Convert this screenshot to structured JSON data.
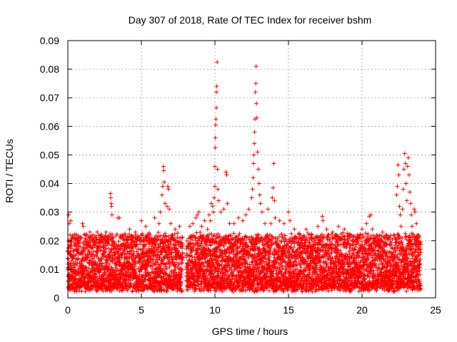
{
  "chart_data": {
    "type": "scatter",
    "title": "Day 307 of 2018, Rate Of TEC Index for receiver bshm",
    "xlabel": "GPS time / hours",
    "ylabel": "ROTI / TECUs",
    "xlim": [
      0,
      25
    ],
    "ylim": [
      0,
      0.09
    ],
    "xticks": [
      "0",
      "5",
      "10",
      "15",
      "20",
      "25"
    ],
    "yticks": [
      "0",
      "0.01",
      "0.02",
      "0.03",
      "0.04",
      "0.05",
      "0.06",
      "0.07",
      "0.08",
      "0.09"
    ],
    "xtick_values": [
      0,
      5,
      10,
      15,
      20,
      25
    ],
    "ytick_values": [
      0,
      0.01,
      0.02,
      0.03,
      0.04,
      0.05,
      0.06,
      0.07,
      0.08,
      0.09
    ],
    "grid": true,
    "marker": "plus",
    "color": "#ff0000",
    "data_gaps_hours": [
      [
        7.8,
        8.05
      ]
    ],
    "background_band": {
      "start": 0,
      "end": 24,
      "typical_min": 0.003,
      "typical_max": 0.022
    },
    "points": [
      [
        0.05,
        0.029
      ],
      [
        0.1,
        0.026
      ],
      [
        0.15,
        0.022
      ],
      [
        0.2,
        0.027
      ],
      [
        0.25,
        0.018
      ],
      [
        0.6,
        0.022
      ],
      [
        0.9,
        0.021
      ],
      [
        1.0,
        0.026
      ],
      [
        1.05,
        0.025
      ],
      [
        1.2,
        0.022
      ],
      [
        1.5,
        0.023
      ],
      [
        1.7,
        0.022
      ],
      [
        2.0,
        0.023
      ],
      [
        2.3,
        0.02
      ],
      [
        2.6,
        0.023
      ],
      [
        2.9,
        0.0365
      ],
      [
        2.92,
        0.035
      ],
      [
        2.95,
        0.033
      ],
      [
        2.98,
        0.032
      ],
      [
        3.0,
        0.029
      ],
      [
        3.4,
        0.028
      ],
      [
        3.5,
        0.028
      ],
      [
        3.8,
        0.022
      ],
      [
        4.2,
        0.024
      ],
      [
        4.6,
        0.023
      ],
      [
        5.0,
        0.027
      ],
      [
        5.3,
        0.025
      ],
      [
        5.6,
        0.022
      ],
      [
        5.9,
        0.028
      ],
      [
        6.2,
        0.026
      ],
      [
        6.3,
        0.03
      ],
      [
        6.4,
        0.036
      ],
      [
        6.45,
        0.039
      ],
      [
        6.5,
        0.046
      ],
      [
        6.52,
        0.0445
      ],
      [
        6.55,
        0.0405
      ],
      [
        6.6,
        0.033
      ],
      [
        6.75,
        0.032
      ],
      [
        6.8,
        0.039
      ],
      [
        6.85,
        0.038
      ],
      [
        6.9,
        0.031
      ],
      [
        7.0,
        0.026
      ],
      [
        7.3,
        0.024
      ],
      [
        7.6,
        0.025
      ],
      [
        8.3,
        0.025
      ],
      [
        8.5,
        0.026
      ],
      [
        8.7,
        0.028
      ],
      [
        8.8,
        0.029
      ],
      [
        8.9,
        0.03
      ],
      [
        9.1,
        0.025
      ],
      [
        9.3,
        0.027
      ],
      [
        9.5,
        0.024
      ],
      [
        9.6,
        0.029
      ],
      [
        9.7,
        0.027
      ],
      [
        9.75,
        0.033
      ],
      [
        9.85,
        0.032
      ],
      [
        9.9,
        0.03
      ],
      [
        9.95,
        0.035
      ],
      [
        10.0,
        0.039
      ],
      [
        10.0,
        0.046
      ],
      [
        10.02,
        0.0525
      ],
      [
        10.03,
        0.056
      ],
      [
        10.05,
        0.0605
      ],
      [
        10.07,
        0.0625
      ],
      [
        10.1,
        0.0665
      ],
      [
        10.1,
        0.072
      ],
      [
        10.12,
        0.074
      ],
      [
        10.15,
        0.0825
      ],
      [
        10.18,
        0.045
      ],
      [
        10.2,
        0.038
      ],
      [
        10.25,
        0.034
      ],
      [
        10.4,
        0.03
      ],
      [
        10.6,
        0.031
      ],
      [
        10.75,
        0.044
      ],
      [
        10.8,
        0.043
      ],
      [
        10.85,
        0.033
      ],
      [
        11.0,
        0.026
      ],
      [
        11.3,
        0.026
      ],
      [
        11.6,
        0.028
      ],
      [
        11.9,
        0.027
      ],
      [
        12.1,
        0.029
      ],
      [
        12.3,
        0.031
      ],
      [
        12.5,
        0.035
      ],
      [
        12.55,
        0.038
      ],
      [
        12.6,
        0.042
      ],
      [
        12.62,
        0.047
      ],
      [
        12.65,
        0.05
      ],
      [
        12.68,
        0.054
      ],
      [
        12.7,
        0.058
      ],
      [
        12.72,
        0.0625
      ],
      [
        12.75,
        0.072
      ],
      [
        12.78,
        0.075
      ],
      [
        12.8,
        0.081
      ],
      [
        12.82,
        0.068
      ],
      [
        12.85,
        0.063
      ],
      [
        12.9,
        0.051
      ],
      [
        12.95,
        0.045
      ],
      [
        13.0,
        0.04
      ],
      [
        13.05,
        0.036
      ],
      [
        13.1,
        0.033
      ],
      [
        13.2,
        0.03
      ],
      [
        13.4,
        0.026
      ],
      [
        13.6,
        0.031
      ],
      [
        13.8,
        0.026
      ],
      [
        13.9,
        0.035
      ],
      [
        13.95,
        0.0385
      ],
      [
        14.0,
        0.047
      ],
      [
        14.05,
        0.034
      ],
      [
        14.1,
        0.028
      ],
      [
        14.4,
        0.027
      ],
      [
        14.7,
        0.026
      ],
      [
        15.0,
        0.03
      ],
      [
        15.1,
        0.027
      ],
      [
        15.4,
        0.024
      ],
      [
        15.8,
        0.022
      ],
      [
        16.2,
        0.024
      ],
      [
        16.6,
        0.022
      ],
      [
        17.0,
        0.025
      ],
      [
        17.3,
        0.0285
      ],
      [
        17.35,
        0.027
      ],
      [
        17.6,
        0.024
      ],
      [
        18.0,
        0.023
      ],
      [
        18.4,
        0.025
      ],
      [
        18.8,
        0.024
      ],
      [
        19.2,
        0.022
      ],
      [
        19.6,
        0.021
      ],
      [
        20.0,
        0.024
      ],
      [
        20.3,
        0.026
      ],
      [
        20.5,
        0.0285
      ],
      [
        20.6,
        0.029
      ],
      [
        20.7,
        0.024
      ],
      [
        21.0,
        0.022
      ],
      [
        21.4,
        0.023
      ],
      [
        21.8,
        0.021
      ],
      [
        22.2,
        0.022
      ],
      [
        22.35,
        0.036
      ],
      [
        22.4,
        0.039
      ],
      [
        22.45,
        0.0465
      ],
      [
        22.5,
        0.043
      ],
      [
        22.55,
        0.032
      ],
      [
        22.6,
        0.029
      ],
      [
        22.65,
        0.025
      ],
      [
        22.75,
        0.031
      ],
      [
        22.8,
        0.038
      ],
      [
        22.85,
        0.045
      ],
      [
        22.9,
        0.0505
      ],
      [
        22.95,
        0.047
      ],
      [
        23.0,
        0.04
      ],
      [
        23.05,
        0.034
      ],
      [
        23.1,
        0.046
      ],
      [
        23.15,
        0.049
      ],
      [
        23.2,
        0.043
      ],
      [
        23.25,
        0.037
      ],
      [
        23.3,
        0.033
      ],
      [
        23.35,
        0.029
      ],
      [
        23.4,
        0.025
      ],
      [
        23.55,
        0.031
      ],
      [
        23.6,
        0.03
      ],
      [
        23.7,
        0.026
      ],
      [
        23.8,
        0.022
      ],
      [
        23.9,
        0.019
      ],
      [
        24.0,
        0.017
      ]
    ]
  }
}
